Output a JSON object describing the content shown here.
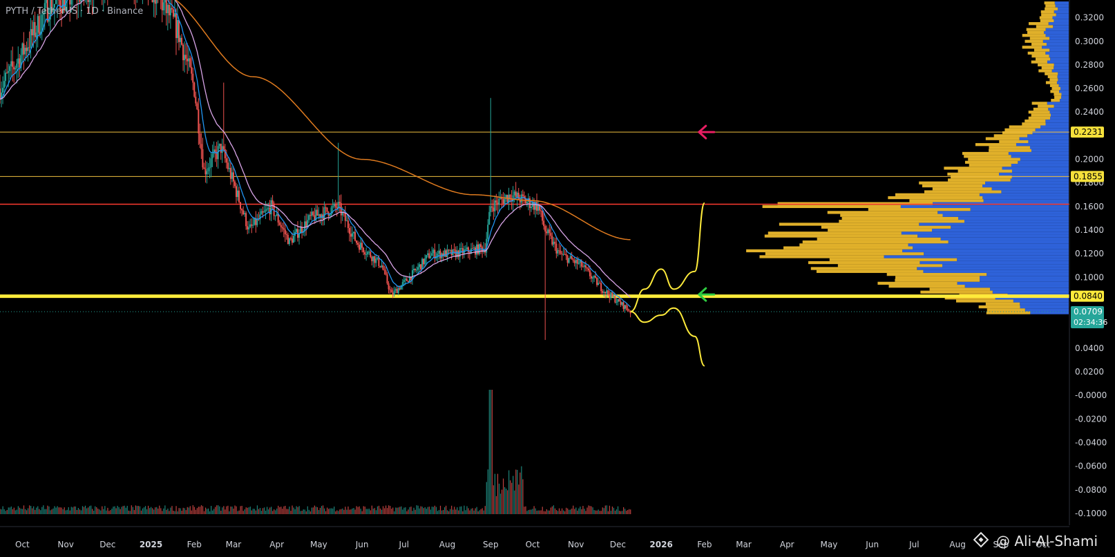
{
  "chart_data": {
    "type": "candlestick",
    "title": "PYTH / TetherUS · 1D · Binance",
    "watermark": "@ Ali-Al-Shami",
    "y_axis": {
      "min": -0.11,
      "max": 0.335,
      "ticks": [
        0.32,
        0.3,
        0.28,
        0.26,
        0.24,
        0.2,
        0.18,
        0.16,
        0.14,
        0.12,
        0.1,
        0.04,
        0.02,
        0.0,
        -0.02,
        -0.04,
        -0.06,
        -0.08,
        -0.1
      ],
      "tick_labels": [
        "0.3200",
        "0.3000",
        "0.2800",
        "0.2600",
        "0.2400",
        "0.2000",
        "0.1800",
        "0.1600",
        "0.1400",
        "0.1200",
        "0.1000",
        "0.0400",
        "0.0200",
        "-0.0000",
        "-0.0200",
        "-0.0400",
        "-0.0600",
        "-0.0800",
        "-0.1000"
      ]
    },
    "x_axis": {
      "labels": [
        "Oct",
        "Nov",
        "Dec",
        "2025",
        "Feb",
        "Mar",
        "Apr",
        "May",
        "Jun",
        "Jul",
        "Aug",
        "Sep",
        "Oct",
        "Nov",
        "Dec",
        "2026",
        "Feb",
        "Mar",
        "Apr",
        "May",
        "Jun",
        "Jul",
        "Aug",
        "Sep",
        "Oct"
      ],
      "start": "2024-09-15",
      "end": "2026-10-20"
    },
    "price_levels": [
      {
        "name": "resistance-upper",
        "value": 0.2231,
        "label": "0.2231",
        "color": "#f0c040"
      },
      {
        "name": "resistance-mid",
        "value": 0.1855,
        "label": "0.1855",
        "color": "#f0c040"
      },
      {
        "name": "point-of-control",
        "value": 0.162,
        "color": "#ff3b30"
      },
      {
        "name": "support",
        "value": 0.084,
        "label": "0.0840",
        "color": "#ffeb3b"
      }
    ],
    "current_price": {
      "value": 0.0709,
      "label": "0.0709",
      "countdown": "02:34:36",
      "color": "#26a69a"
    },
    "price_anchors": [
      [
        "2024-09-15",
        0.26
      ],
      [
        "2024-10-01",
        0.29
      ],
      [
        "2024-10-20",
        0.33
      ],
      [
        "2024-11-10",
        0.34
      ],
      [
        "2024-12-10",
        0.36
      ],
      [
        "2025-01-05",
        0.34
      ],
      [
        "2025-01-20",
        0.31
      ],
      [
        "2025-02-01",
        0.26
      ],
      [
        "2025-02-08",
        0.19
      ],
      [
        "2025-02-20",
        0.21
      ],
      [
        "2025-03-01",
        0.18
      ],
      [
        "2025-03-12",
        0.14
      ],
      [
        "2025-03-28",
        0.16
      ],
      [
        "2025-04-10",
        0.13
      ],
      [
        "2025-04-25",
        0.15
      ],
      [
        "2025-05-15",
        0.16
      ],
      [
        "2025-05-28",
        0.13
      ],
      [
        "2025-06-15",
        0.11
      ],
      [
        "2025-06-22",
        0.085
      ],
      [
        "2025-07-05",
        0.1
      ],
      [
        "2025-07-20",
        0.12
      ],
      [
        "2025-08-05",
        0.12
      ],
      [
        "2025-08-28",
        0.125
      ],
      [
        "2025-09-01",
        0.16
      ],
      [
        "2025-09-15",
        0.17
      ],
      [
        "2025-10-05",
        0.16
      ],
      [
        "2025-10-10",
        0.14
      ],
      [
        "2025-10-20",
        0.12
      ],
      [
        "2025-11-05",
        0.11
      ],
      [
        "2025-11-20",
        0.09
      ],
      [
        "2025-12-10",
        0.071
      ]
    ],
    "projection_paths": [
      {
        "name": "bullish-path",
        "points": [
          [
            "2025-12-10",
            0.071
          ],
          [
            "2025-12-20",
            0.09
          ],
          [
            "2026-01-01",
            0.107
          ],
          [
            "2026-01-10",
            0.09
          ],
          [
            "2026-01-25",
            0.105
          ],
          [
            "2026-02-01",
            0.163
          ]
        ]
      },
      {
        "name": "bearish-path",
        "points": [
          [
            "2025-12-10",
            0.071
          ],
          [
            "2025-12-20",
            0.062
          ],
          [
            "2026-01-01",
            0.068
          ],
          [
            "2026-01-10",
            0.074
          ],
          [
            "2026-01-25",
            0.05
          ],
          [
            "2026-02-01",
            0.025
          ]
        ]
      }
    ],
    "arrows": [
      {
        "name": "target-arrow",
        "date": "2026-01-28",
        "value": 0.2231,
        "color": "#e91e63"
      },
      {
        "name": "support-arrow",
        "date": "2026-01-28",
        "value": 0.0855,
        "color": "#2ecc40"
      }
    ],
    "moving_averages": [
      {
        "name": "ema-fast",
        "color": "#2196f3"
      },
      {
        "name": "ema-slow",
        "color": "#d9a5e8"
      },
      {
        "name": "ma-200",
        "color": "#e07b1f"
      }
    ],
    "volume_profile": {
      "buy_color": "#2e62d9",
      "sell_color": "#e0b02a"
    },
    "colors": {
      "up": "#26a69a",
      "down": "#ef5350",
      "grid": "#1a1a1a",
      "axis_text": "#d1d4dc"
    }
  }
}
